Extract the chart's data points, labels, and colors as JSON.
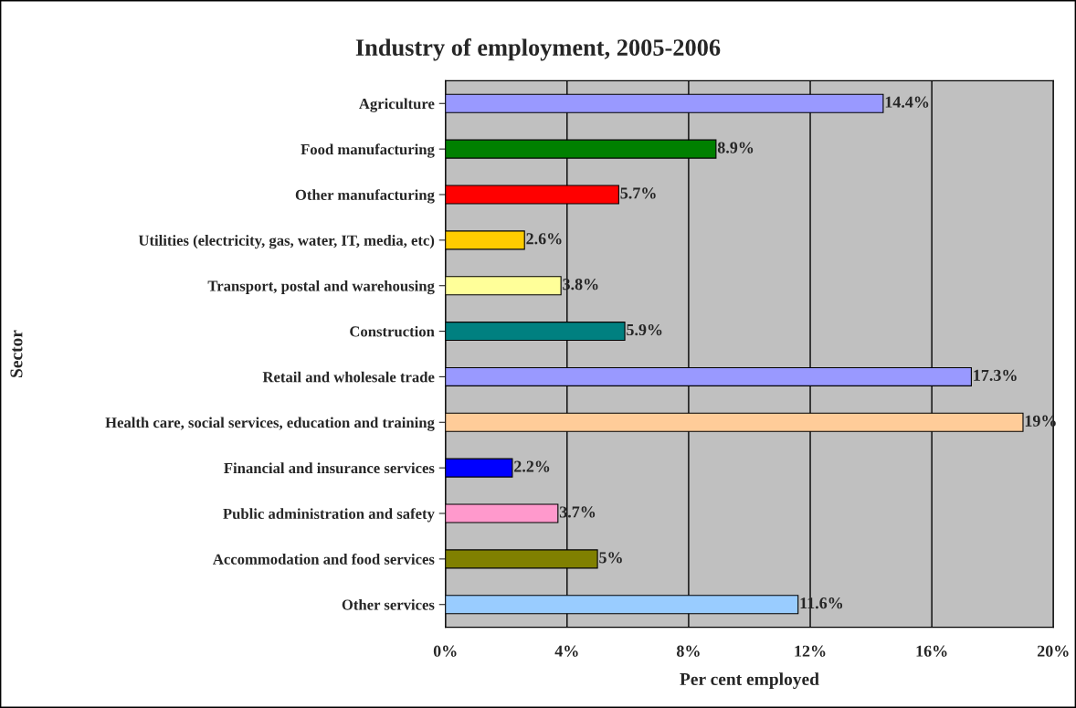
{
  "chart_data": {
    "type": "bar",
    "orientation": "horizontal",
    "title": "Industry of employment, 2005-2006",
    "xlabel": "Per cent employed",
    "ylabel": "Sector",
    "categories": [
      "Agriculture",
      "Food manufacturing",
      "Other manufacturing",
      "Utilities (electricity, gas, water, IT, media, etc)",
      "Transport, postal and warehousing",
      "Construction",
      "Retail and wholesale trade",
      "Health care, social services, education and training",
      "Financial and insurance services",
      "Public administration and safety",
      "Accommodation and food services",
      "Other services"
    ],
    "values": [
      14.4,
      8.9,
      5.7,
      2.6,
      3.8,
      5.9,
      17.3,
      19,
      2.2,
      3.7,
      5,
      11.6
    ],
    "value_labels": [
      "14.4%",
      "8.9%",
      "5.7%",
      "2.6%",
      "3.8%",
      "5.9%",
      "17.3%",
      "19%",
      "2.2%",
      "3.7%",
      "5%",
      "11.6%"
    ],
    "colors": [
      "#9999ff",
      "#008000",
      "#ff0000",
      "#ffcc00",
      "#ffff99",
      "#008080",
      "#9999ff",
      "#ffcc99",
      "#0000ff",
      "#ff99cc",
      "#808000",
      "#99ccff"
    ],
    "xlim": [
      0,
      20
    ],
    "xticks": [
      {
        "value": 0,
        "label": "0%"
      },
      {
        "value": 4,
        "label": "4%"
      },
      {
        "value": 8,
        "label": "8%"
      },
      {
        "value": 12,
        "label": "12%"
      },
      {
        "value": 16,
        "label": "16%"
      },
      {
        "value": 20,
        "label": "20%"
      }
    ],
    "grid": "x",
    "legend": false
  }
}
